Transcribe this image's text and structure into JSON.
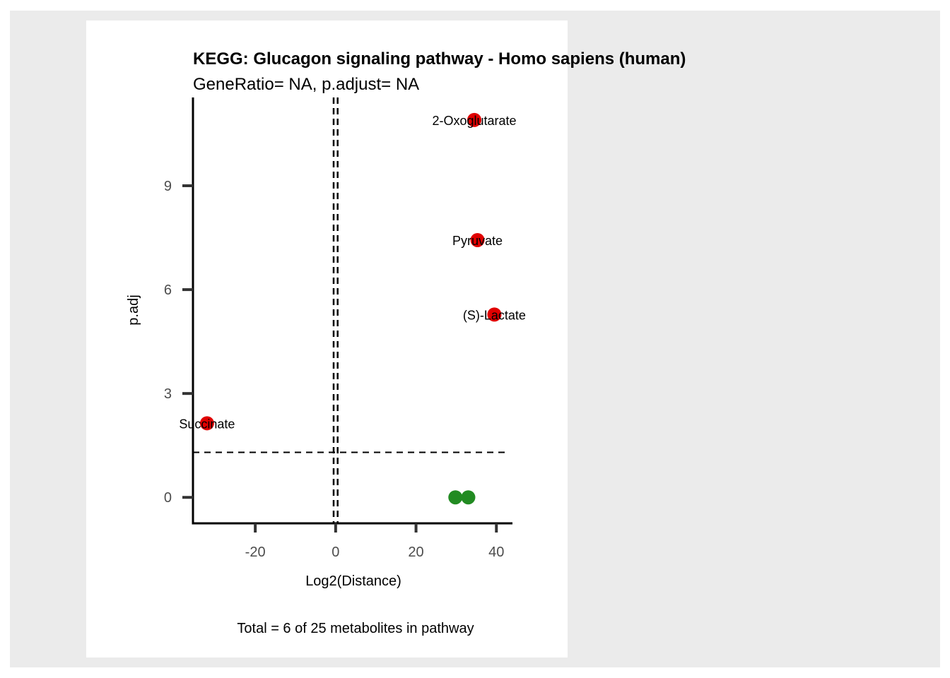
{
  "colors": {
    "outer_background": "#ebebeb",
    "panel_background": "#ffffff",
    "significant": "#e00000",
    "not_significant": "#228b22"
  },
  "chart_data": {
    "type": "scatter",
    "title": "KEGG: Glucagon signaling pathway - Homo sapiens (human)",
    "subtitle": "GeneRatio= NA, p.adjust= NA",
    "xlabel": "Log2(Distance)",
    "ylabel": "p.adj",
    "caption": "Total = 6 of 25 metabolites in pathway",
    "xlim": [
      -35.5,
      44
    ],
    "ylim": [
      -0.75,
      11.55
    ],
    "x_ticks": [
      -20,
      0,
      20,
      40
    ],
    "y_ticks": [
      0,
      3,
      6,
      9
    ],
    "reference_lines": {
      "vertical": [
        -0.5,
        0.5
      ],
      "horizontal": [
        1.3
      ]
    },
    "grid": false,
    "series": [
      {
        "color": "#e00000",
        "points": [
          {
            "x": 34.5,
            "y": 10.9,
            "label": "2-Oxoglutarate"
          },
          {
            "x": 35.3,
            "y": 7.43,
            "label": "Pyruvate"
          },
          {
            "x": 39.5,
            "y": 5.28,
            "label": "(S)-Lactate"
          },
          {
            "x": -32.0,
            "y": 2.14,
            "label": "Succinate"
          }
        ]
      },
      {
        "color": "#228b22",
        "points": [
          {
            "x": 29.8,
            "y": 0.0,
            "label": ""
          },
          {
            "x": 33.0,
            "y": 0.0,
            "label": ""
          }
        ]
      }
    ]
  }
}
